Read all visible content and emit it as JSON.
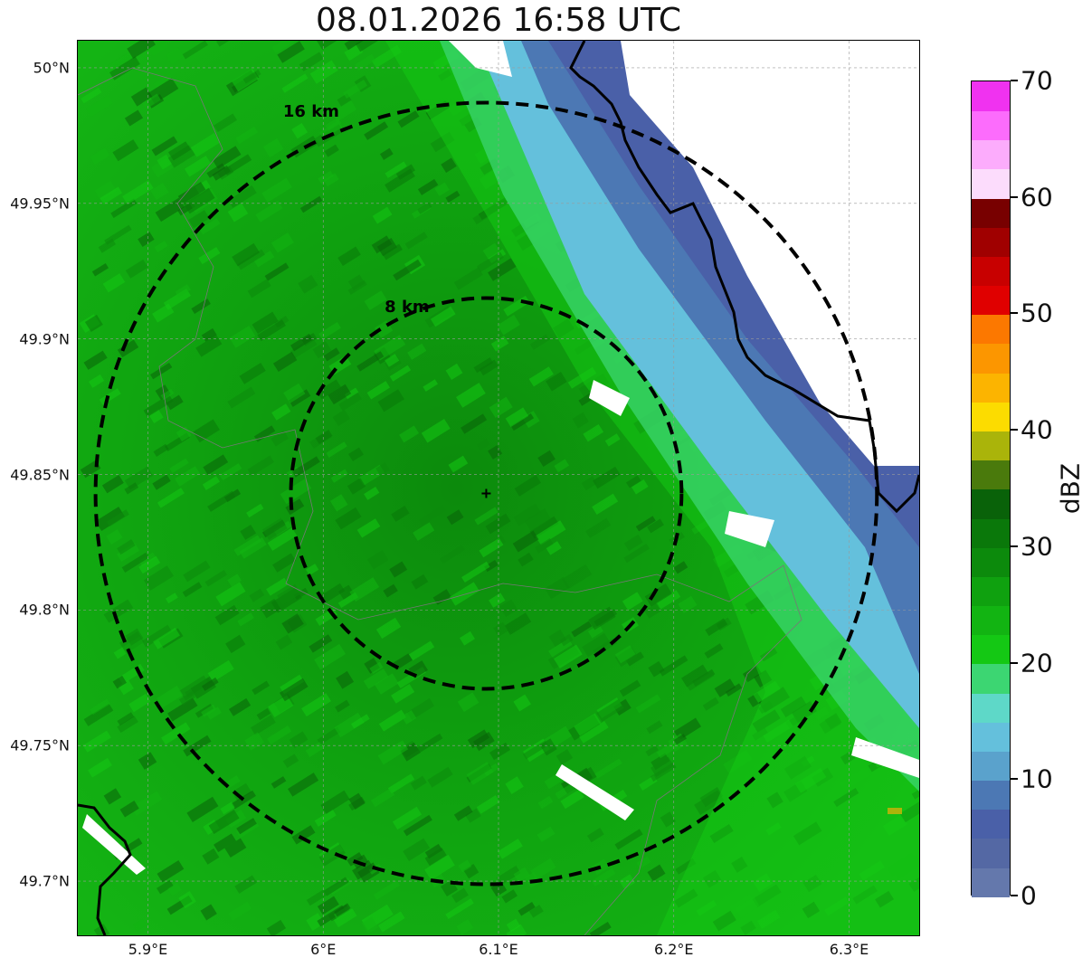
{
  "title": "08.01.2026 16:58 UTC",
  "map": {
    "extent": {
      "lon_min": 5.86,
      "lon_max": 6.34,
      "lat_min": 49.68,
      "lat_max": 50.01
    },
    "radar_site": {
      "lon": 6.093,
      "lat": 49.843
    },
    "rings": [
      {
        "label": "8 km",
        "radius_km": 8
      },
      {
        "label": "16 km",
        "radius_km": 16
      }
    ],
    "lat_ticks": [
      {
        "value": 50.0,
        "label": "50°N"
      },
      {
        "value": 49.95,
        "label": "49.95°N"
      },
      {
        "value": 49.9,
        "label": "49.9°N"
      },
      {
        "value": 49.85,
        "label": "49.85°N"
      },
      {
        "value": 49.8,
        "label": "49.8°N"
      },
      {
        "value": 49.75,
        "label": "49.75°N"
      },
      {
        "value": 49.7,
        "label": "49.7°N"
      }
    ],
    "lon_ticks": [
      {
        "value": 5.9,
        "label": "5.9°E"
      },
      {
        "value": 6.0,
        "label": "6°E"
      },
      {
        "value": 6.1,
        "label": "6.1°E"
      },
      {
        "value": 6.2,
        "label": "6.2°E"
      },
      {
        "value": 6.3,
        "label": "6.3°E"
      }
    ]
  },
  "colorbar": {
    "unit": "dBZ",
    "min": 0,
    "max": 70,
    "step": 2.5,
    "tick_labels": [
      "0",
      "10",
      "20",
      "30",
      "40",
      "50",
      "60",
      "70"
    ],
    "colors": [
      "#6478ac",
      "#5468a4",
      "#4a60a8",
      "#4c78b4",
      "#5aa2cc",
      "#64c0dc",
      "#5ed8c8",
      "#3cd672",
      "#14c814",
      "#12b412",
      "#0fa10f",
      "#0c8a0c",
      "#0a780a",
      "#096209",
      "#4a7a0c",
      "#aab40a",
      "#fcdc00",
      "#fcb400",
      "#fc9600",
      "#fc7800",
      "#e00000",
      "#c80000",
      "#a00000",
      "#780000",
      "#fcdcfc",
      "#fcacfc",
      "#fc6cfc",
      "#f032f0"
    ]
  }
}
